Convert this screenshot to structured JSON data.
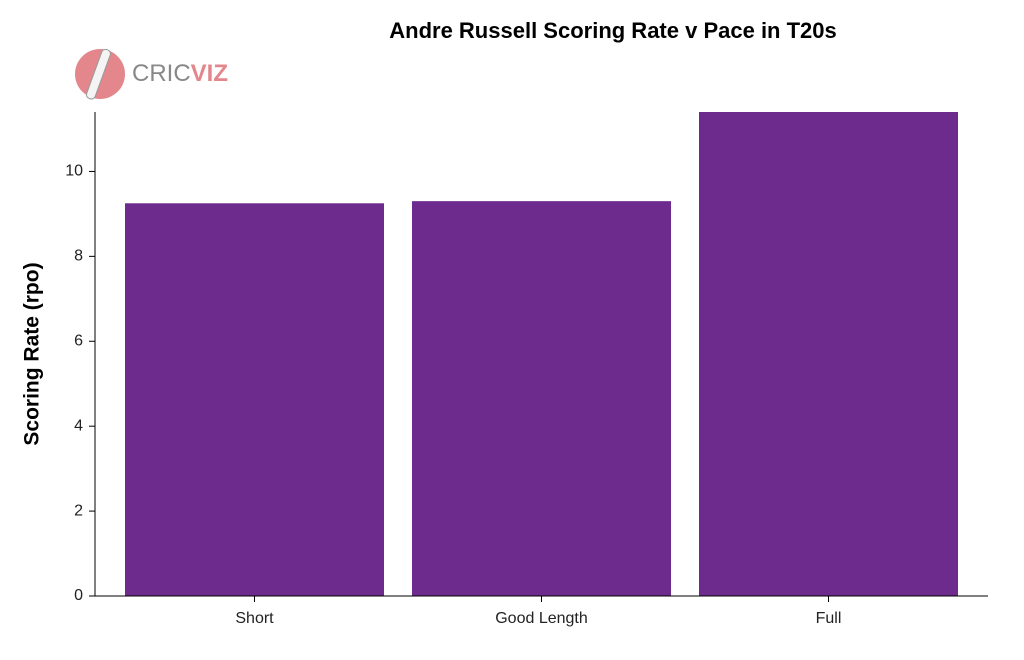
{
  "chart_data": {
    "type": "bar",
    "title": "Andre Russell Scoring Rate v Pace in T20s",
    "y_label": "Scoring Rate (rpo)",
    "categories": [
      "Short",
      "Good Length",
      "Full"
    ],
    "values": [
      9.25,
      9.3,
      11.4
    ],
    "color": "#6d2b8e",
    "ylim": [
      0,
      11.4
    ],
    "yticks": [
      0,
      2,
      4,
      6,
      8,
      10
    ]
  },
  "logo": {
    "part1": "CRIC",
    "part2": "VIZ"
  }
}
